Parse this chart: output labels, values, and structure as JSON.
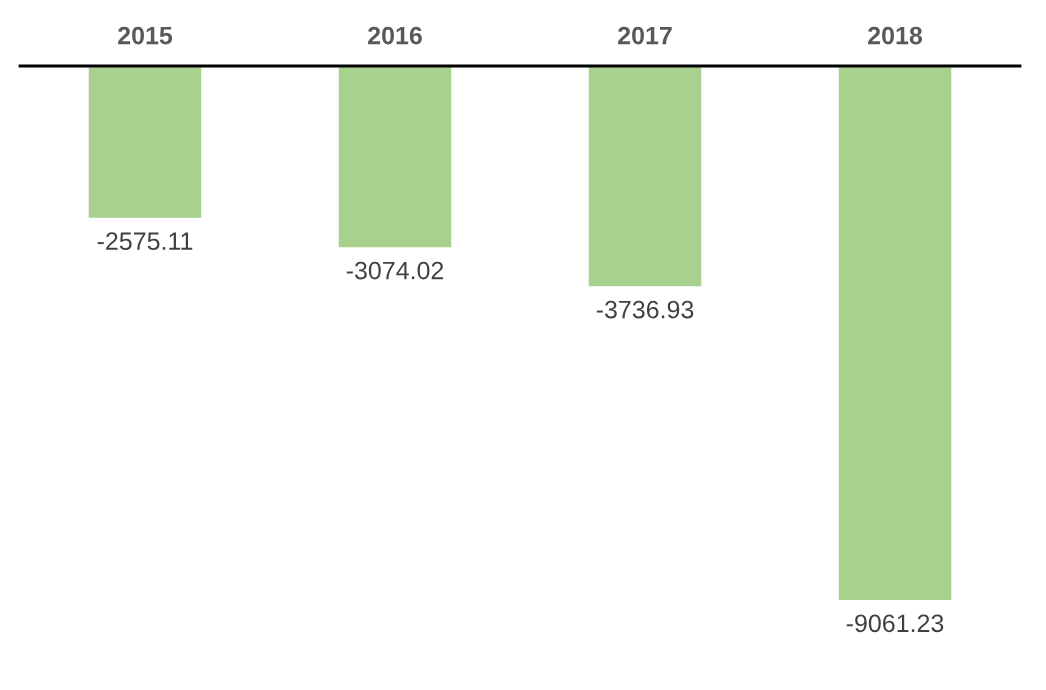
{
  "chart_data": {
    "type": "bar",
    "categories": [
      "2015",
      "2016",
      "2017",
      "2018"
    ],
    "values": [
      -2575.11,
      -3074.02,
      -3736.93,
      -9061.23
    ],
    "color": "#a9d18e",
    "data_labels": true,
    "grid": false,
    "tick_labels": "x"
  }
}
